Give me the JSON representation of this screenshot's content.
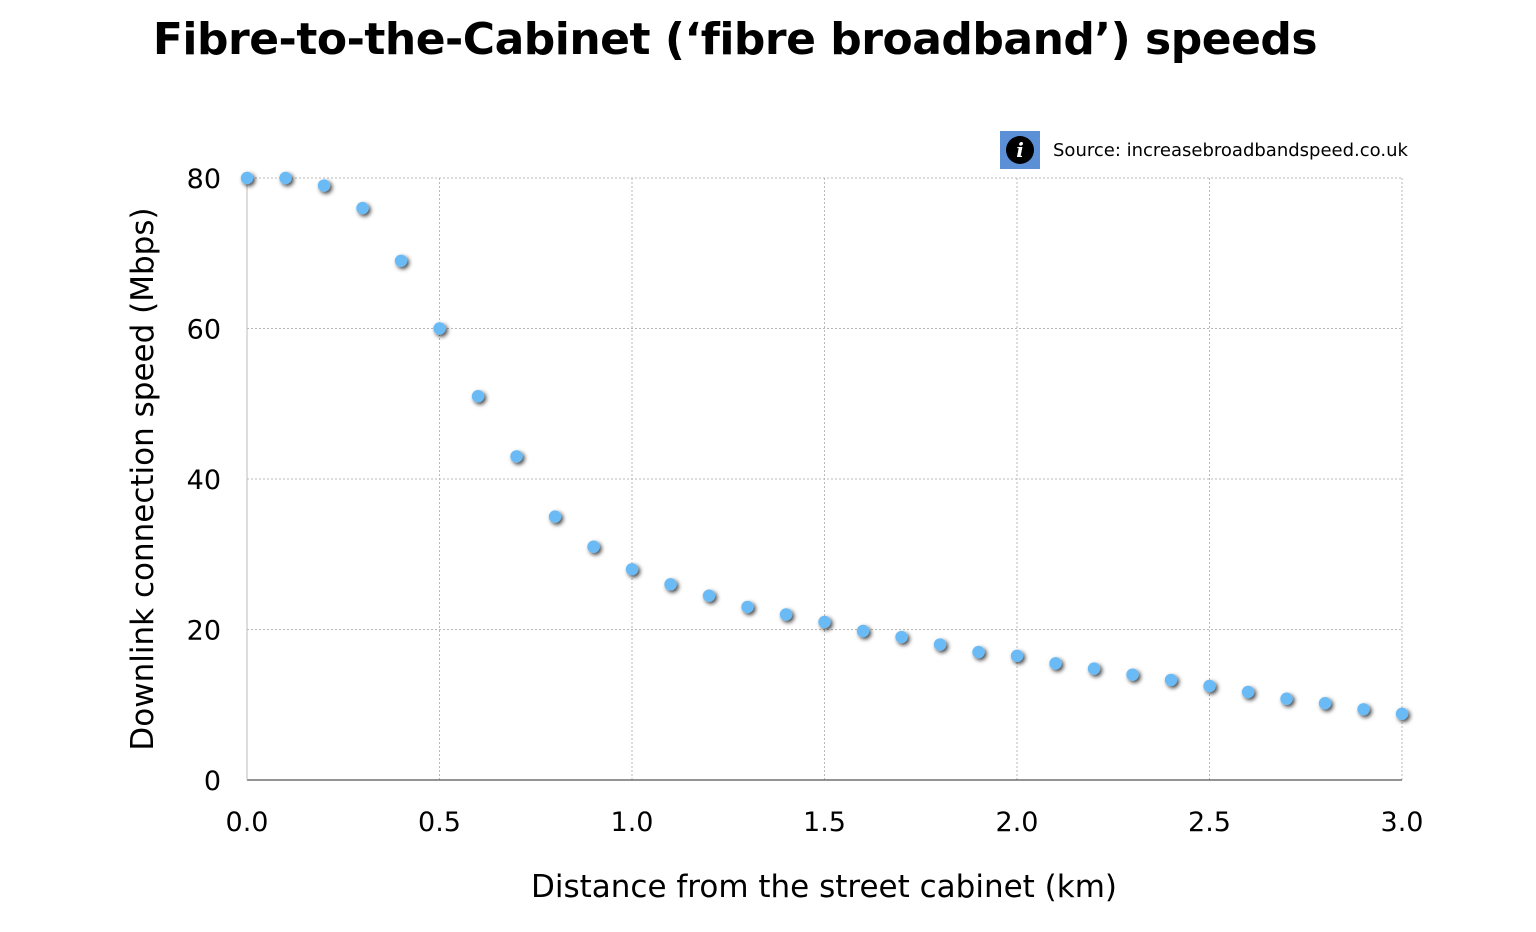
{
  "source": {
    "icon": "info-icon",
    "icon_glyph": "i",
    "badge_color": "#5b8fd6",
    "text": "Source: increasebroadbandspeed.co.uk"
  },
  "chart_data": {
    "type": "scatter",
    "title": "Fibre-to-the-Cabinet (‘fibre broadband’) speeds",
    "xlabel": "Distance from the street cabinet (km)",
    "ylabel": "Downlink connection speed (Mbps)",
    "xlim": [
      0,
      3
    ],
    "ylim": [
      0,
      80
    ],
    "xticks": [
      "0.0",
      "0.5",
      "1.0",
      "1.5",
      "2.0",
      "2.5",
      "3.0"
    ],
    "yticks": [
      "0",
      "20",
      "40",
      "60",
      "80"
    ],
    "grid": true,
    "point_color": "#6bbaf5",
    "x": [
      0.0,
      0.1,
      0.2,
      0.3,
      0.4,
      0.5,
      0.6,
      0.7,
      0.8,
      0.9,
      1.0,
      1.1,
      1.2,
      1.3,
      1.4,
      1.5,
      1.6,
      1.7,
      1.8,
      1.9,
      2.0,
      2.1,
      2.2,
      2.3,
      2.4,
      2.5,
      2.6,
      2.7,
      2.8,
      2.9,
      3.0
    ],
    "y": [
      80,
      80,
      79,
      76,
      69,
      60,
      51,
      43,
      35,
      31,
      28,
      26,
      24.5,
      23,
      22,
      21,
      19.8,
      19,
      18,
      17,
      16.5,
      15.5,
      14.8,
      14,
      13.3,
      12.5,
      11.7,
      10.8,
      10.2,
      9.4,
      8.8
    ]
  }
}
